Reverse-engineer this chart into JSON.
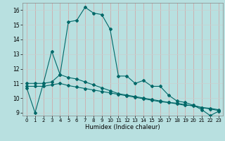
{
  "xlabel": "Humidex (Indice chaleur)",
  "bg_color": "#b8e0e0",
  "line_color": "#006868",
  "grid_color_v": "#d4a0a0",
  "grid_color_h": "#c8d0d0",
  "xlim": [
    -0.5,
    23.5
  ],
  "ylim": [
    8.8,
    16.5
  ],
  "xticks": [
    0,
    1,
    2,
    3,
    4,
    5,
    6,
    7,
    8,
    9,
    10,
    11,
    12,
    13,
    14,
    15,
    16,
    17,
    18,
    19,
    20,
    21,
    22,
    23
  ],
  "yticks": [
    9,
    10,
    11,
    12,
    13,
    14,
    15,
    16
  ],
  "line1_x": [
    0,
    1,
    2,
    3,
    4,
    5,
    6,
    7,
    8,
    9,
    10,
    11,
    12,
    13,
    14,
    15,
    16,
    17,
    18,
    19,
    20,
    21,
    22,
    23
  ],
  "line1_y": [
    10.7,
    9.0,
    11.0,
    13.2,
    11.6,
    15.2,
    15.3,
    16.2,
    15.8,
    15.7,
    14.7,
    11.5,
    11.5,
    11.0,
    11.2,
    10.8,
    10.8,
    10.2,
    9.8,
    9.7,
    9.5,
    9.2,
    8.8,
    9.1
  ],
  "line2_x": [
    0,
    1,
    2,
    3,
    4,
    5,
    6,
    7,
    8,
    9,
    10,
    11,
    12,
    13,
    14,
    15,
    16,
    17,
    18,
    19,
    20,
    21,
    22,
    23
  ],
  "line2_y": [
    11.0,
    11.0,
    11.0,
    11.1,
    11.6,
    11.4,
    11.3,
    11.1,
    10.9,
    10.7,
    10.5,
    10.3,
    10.2,
    10.1,
    10.0,
    9.9,
    9.8,
    9.7,
    9.6,
    9.5,
    9.5,
    9.35,
    9.3,
    9.2
  ],
  "line3_x": [
    0,
    1,
    2,
    3,
    4,
    5,
    6,
    7,
    8,
    9,
    10,
    11,
    12,
    13,
    14,
    15,
    16,
    17,
    18,
    19,
    20,
    21,
    22,
    23
  ],
  "line3_y": [
    10.8,
    10.8,
    10.8,
    10.9,
    11.0,
    10.85,
    10.75,
    10.65,
    10.55,
    10.45,
    10.35,
    10.25,
    10.15,
    10.05,
    9.95,
    9.85,
    9.75,
    9.7,
    9.65,
    9.55,
    9.45,
    9.35,
    9.25,
    9.15
  ]
}
